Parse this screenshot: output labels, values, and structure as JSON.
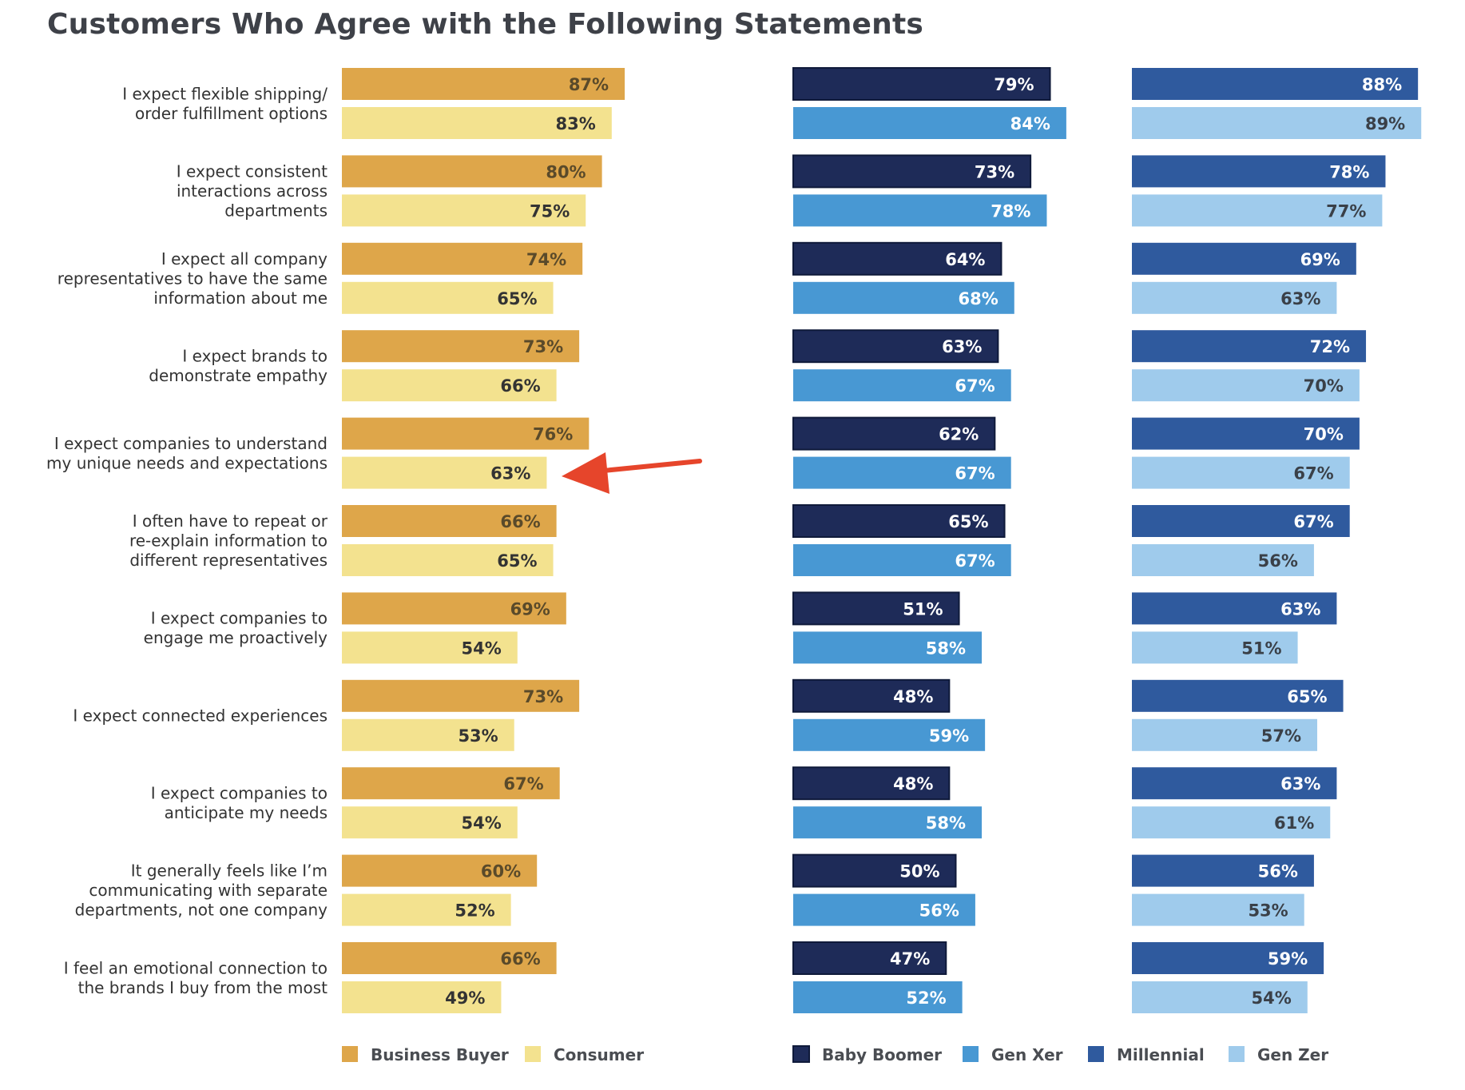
{
  "chart_data": {
    "type": "bar",
    "title": "Customers Who Agree with the Following Statements",
    "unit": "%",
    "categories": [
      [
        "I expect flexible shipping/",
        "order fulfillment options"
      ],
      [
        "I expect consistent",
        "interactions across",
        "departments"
      ],
      [
        "I expect all company",
        "representatives to have the same",
        "information about me"
      ],
      [
        "I expect brands to",
        "demonstrate empathy"
      ],
      [
        "I expect companies to understand",
        "my unique needs and expectations"
      ],
      [
        "I often have to repeat or",
        "re-explain information to",
        "different representatives"
      ],
      [
        "I expect companies to",
        "engage me proactively"
      ],
      [
        "I expect connected experiences"
      ],
      [
        "I expect companies to",
        "anticipate my needs"
      ],
      [
        "It generally feels like I’m",
        "communicating with separate",
        "departments, not one company"
      ],
      [
        "I feel an emotional connection to",
        "the brands I buy from the most"
      ]
    ],
    "panels": [
      {
        "series": [
          {
            "name": "Business Buyer",
            "color": "#dea64a",
            "text_color": "#5a4a2a",
            "values": [
              87,
              80,
              74,
              73,
              76,
              66,
              69,
              73,
              67,
              60,
              66
            ]
          },
          {
            "name": "Consumer",
            "color": "#f3e28f",
            "text_color": "#333333",
            "values": [
              83,
              75,
              65,
              66,
              63,
              65,
              54,
              53,
              54,
              52,
              49
            ]
          }
        ]
      },
      {
        "series": [
          {
            "name": "Baby Boomer",
            "color": "#1e2b58",
            "text_color": "#ffffff",
            "values": [
              79,
              73,
              64,
              63,
              62,
              65,
              51,
              48,
              48,
              50,
              47
            ]
          },
          {
            "name": "Gen Xer",
            "color": "#4898d3",
            "text_color": "#ffffff",
            "values": [
              84,
              78,
              68,
              67,
              67,
              67,
              58,
              59,
              58,
              56,
              52
            ]
          }
        ]
      },
      {
        "series": [
          {
            "name": "Millennial",
            "color": "#2f5a9e",
            "text_color": "#ffffff",
            "values": [
              88,
              78,
              69,
              72,
              70,
              67,
              63,
              65,
              63,
              56,
              59
            ]
          },
          {
            "name": "Gen Zer",
            "color": "#9fcbec",
            "text_color": "#3a4048",
            "values": [
              89,
              77,
              63,
              70,
              67,
              56,
              51,
              57,
              61,
              53,
              54
            ]
          }
        ]
      }
    ],
    "annotation": {
      "type": "arrow",
      "color": "#e6452b",
      "points_to": "Consumer bar of category 5 (63%)"
    }
  }
}
